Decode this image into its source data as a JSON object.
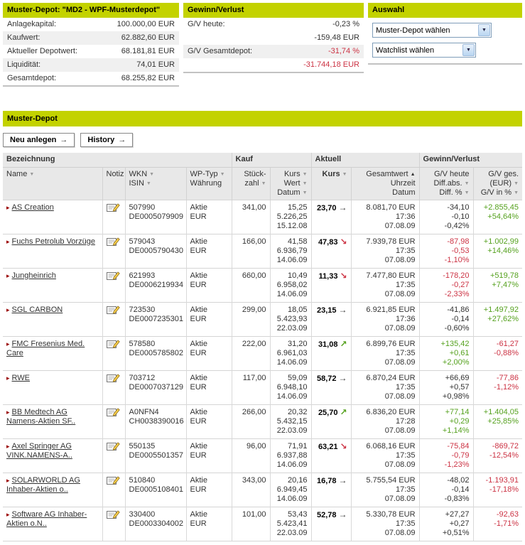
{
  "colors": {
    "accent": "#c3d200",
    "negative": "#cc3344",
    "positive": "#55a11e",
    "neutral": "#333333"
  },
  "panels": {
    "depot": {
      "title": "Muster-Depot: \"MD2 - WPF-Musterdepot\"",
      "rows": [
        {
          "label": "Anlagekapital:",
          "value": "100.000,00 EUR"
        },
        {
          "label": "Kaufwert:",
          "value": "62.882,60 EUR"
        },
        {
          "label": "Aktueller Depotwert:",
          "value": "68.181,81 EUR"
        },
        {
          "label": "Liquidität:",
          "value": "74,01 EUR"
        },
        {
          "label": "Gesamtdepot:",
          "value": "68.255,82 EUR"
        }
      ]
    },
    "gv": {
      "title": "Gewinn/Verlust",
      "lines": [
        {
          "label": "G/V heute:",
          "value": "-0,23 %",
          "negative": false
        },
        {
          "label": "",
          "value": "-159,48 EUR",
          "negative": false
        },
        {
          "label": "G/V Gesamtdepot:",
          "value": "-31,74 %",
          "negative": true
        },
        {
          "label": "",
          "value": "-31.744,18 EUR",
          "negative": true
        }
      ]
    },
    "auswahl": {
      "title": "Auswahl",
      "selects": [
        {
          "name": "musterdepot-select",
          "value": "Muster-Depot wählen"
        },
        {
          "name": "watchlist-select",
          "value": "Watchlist wählen"
        }
      ]
    }
  },
  "main": {
    "title": "Muster-Depot",
    "buttons": [
      {
        "name": "neu-anlegen-button",
        "label": "Neu anlegen"
      },
      {
        "name": "history-button",
        "label": "History"
      }
    ]
  },
  "table": {
    "groups": [
      {
        "label": "Bezeichnung",
        "span": 4
      },
      {
        "label": "Kauf",
        "span": 2
      },
      {
        "label": "Aktuell",
        "span": 2
      },
      {
        "label": "Gewinn/Verlust",
        "span": 2
      }
    ],
    "columns": [
      {
        "key": "name",
        "align": "left",
        "lines": [
          {
            "t": "Name",
            "sort": "down"
          }
        ]
      },
      {
        "key": "notiz",
        "align": "left",
        "lines": [
          {
            "t": "Notiz"
          }
        ]
      },
      {
        "key": "wkn-isin",
        "align": "left",
        "lines": [
          {
            "t": "WKN",
            "sort": "down"
          },
          {
            "t": "ISIN",
            "sort": "down"
          }
        ]
      },
      {
        "key": "wptyp",
        "align": "left",
        "lines": [
          {
            "t": "WP-Typ",
            "sort": "down"
          },
          {
            "t": "Währung"
          }
        ]
      },
      {
        "key": "stueckzahl",
        "align": "right",
        "lines": [
          {
            "t": "Stück-"
          },
          {
            "t": "zahl",
            "sort": "down"
          }
        ]
      },
      {
        "key": "kauf",
        "align": "right",
        "lines": [
          {
            "t": "Kurs",
            "sort": "down"
          },
          {
            "t": "Wert",
            "sort": "down"
          },
          {
            "t": "Datum",
            "sort": "down"
          }
        ]
      },
      {
        "key": "kurs",
        "align": "right",
        "lines": [
          {
            "t": "Kurs",
            "sort": "down",
            "bold": true
          }
        ]
      },
      {
        "key": "gesamtwert",
        "align": "right",
        "lines": [
          {
            "t": "Gesamtwert",
            "sort": "up-active"
          },
          {
            "t": "Uhrzeit"
          },
          {
            "t": "Datum"
          }
        ]
      },
      {
        "key": "gv-heute",
        "align": "right",
        "lines": [
          {
            "t": "G/V heute"
          },
          {
            "t": "Diff.abs.",
            "sort": "down"
          },
          {
            "t": "Diff. %",
            "sort": "down"
          }
        ]
      },
      {
        "key": "gv-ges",
        "align": "right",
        "lines": [
          {
            "t": "G/V ges."
          },
          {
            "t": "(EUR)",
            "sort": "down"
          },
          {
            "t": "G/V in %",
            "sort": "down"
          }
        ]
      }
    ],
    "rows": [
      {
        "name": "AS Creation",
        "wkn": "507990",
        "isin": "DE0005079909",
        "typ": "Aktie",
        "waehrung": "EUR",
        "stueckzahl": "341,00",
        "kauf_kurs": "15,25",
        "kauf_wert": "5.226,25",
        "kauf_datum": "15.12.08",
        "kurs": "23,70",
        "trend": "flat",
        "gesamtwert": "8.081,70 EUR",
        "uhrzeit": "17:36",
        "datum": "07.08.09",
        "gv_heute_abs": "-34,10",
        "gv_heute_diff": "-0,10",
        "gv_heute_pct": "-0,42%",
        "gv_ges_eur": "+2.855,45",
        "gv_ges_pct": "+54,64%"
      },
      {
        "name": "Fuchs Petrolub Vorzüge",
        "wkn": "579043",
        "isin": "DE0005790430",
        "typ": "Aktie",
        "waehrung": "EUR",
        "stueckzahl": "166,00",
        "kauf_kurs": "41,58",
        "kauf_wert": "6.936,79",
        "kauf_datum": "14.06.09",
        "kurs": "47,83",
        "trend": "down",
        "gesamtwert": "7.939,78 EUR",
        "uhrzeit": "17:35",
        "datum": "07.08.09",
        "gv_heute_abs": "-87,98",
        "gv_heute_diff": "-0,53",
        "gv_heute_pct": "-1,10%",
        "gv_ges_eur": "+1.002,99",
        "gv_ges_pct": "+14,46%"
      },
      {
        "name": "Jungheinrich",
        "wkn": "621993",
        "isin": "DE0006219934",
        "typ": "Aktie",
        "waehrung": "EUR",
        "stueckzahl": "660,00",
        "kauf_kurs": "10,49",
        "kauf_wert": "6.958,02",
        "kauf_datum": "14.06.09",
        "kurs": "11,33",
        "trend": "down",
        "gesamtwert": "7.477,80 EUR",
        "uhrzeit": "17:35",
        "datum": "07.08.09",
        "gv_heute_abs": "-178,20",
        "gv_heute_diff": "-0,27",
        "gv_heute_pct": "-2,33%",
        "gv_ges_eur": "+519,78",
        "gv_ges_pct": "+7,47%"
      },
      {
        "name": "SGL CARBON",
        "wkn": "723530",
        "isin": "DE0007235301",
        "typ": "Aktie",
        "waehrung": "EUR",
        "stueckzahl": "299,00",
        "kauf_kurs": "18,05",
        "kauf_wert": "5.423,93",
        "kauf_datum": "22.03.09",
        "kurs": "23,15",
        "trend": "flat",
        "gesamtwert": "6.921,85 EUR",
        "uhrzeit": "17:36",
        "datum": "07.08.09",
        "gv_heute_abs": "-41,86",
        "gv_heute_diff": "-0,14",
        "gv_heute_pct": "-0,60%",
        "gv_ges_eur": "+1.497,92",
        "gv_ges_pct": "+27,62%"
      },
      {
        "name": "FMC Fresenius Med. Care",
        "wkn": "578580",
        "isin": "DE0005785802",
        "typ": "Aktie",
        "waehrung": "EUR",
        "stueckzahl": "222,00",
        "kauf_kurs": "31,20",
        "kauf_wert": "6.961,03",
        "kauf_datum": "14.06.09",
        "kurs": "31,08",
        "trend": "up",
        "gesamtwert": "6.899,76 EUR",
        "uhrzeit": "17:35",
        "datum": "07.08.09",
        "gv_heute_abs": "+135,42",
        "gv_heute_diff": "+0,61",
        "gv_heute_pct": "+2,00%",
        "gv_ges_eur": "-61,27",
        "gv_ges_pct": "-0,88%"
      },
      {
        "name": "RWE",
        "wkn": "703712",
        "isin": "DE0007037129",
        "typ": "Aktie",
        "waehrung": "EUR",
        "stueckzahl": "117,00",
        "kauf_kurs": "59,09",
        "kauf_wert": "6.948,10",
        "kauf_datum": "14.06.09",
        "kurs": "58,72",
        "trend": "flat",
        "gesamtwert": "6.870,24 EUR",
        "uhrzeit": "17:35",
        "datum": "07.08.09",
        "gv_heute_abs": "+66,69",
        "gv_heute_diff": "+0,57",
        "gv_heute_pct": "+0,98%",
        "gv_ges_eur": "-77,86",
        "gv_ges_pct": "-1,12%"
      },
      {
        "name": "BB Medtech AG Namens-Aktien SF..",
        "wkn": "A0NFN4",
        "isin": "CH0038390016",
        "typ": "Aktie",
        "waehrung": "EUR",
        "stueckzahl": "266,00",
        "kauf_kurs": "20,32",
        "kauf_wert": "5.432,15",
        "kauf_datum": "22.03.09",
        "kurs": "25,70",
        "trend": "up",
        "gesamtwert": "6.836,20 EUR",
        "uhrzeit": "17:28",
        "datum": "07.08.09",
        "gv_heute_abs": "+77,14",
        "gv_heute_diff": "+0,29",
        "gv_heute_pct": "+1,14%",
        "gv_ges_eur": "+1.404,05",
        "gv_ges_pct": "+25,85%"
      },
      {
        "name": "Axel Springer AG VINK.NAMENS-A..",
        "wkn": "550135",
        "isin": "DE0005501357",
        "typ": "Aktie",
        "waehrung": "EUR",
        "stueckzahl": "96,00",
        "kauf_kurs": "71,91",
        "kauf_wert": "6.937,88",
        "kauf_datum": "14.06.09",
        "kurs": "63,21",
        "trend": "down",
        "gesamtwert": "6.068,16 EUR",
        "uhrzeit": "17:35",
        "datum": "07.08.09",
        "gv_heute_abs": "-75,84",
        "gv_heute_diff": "-0,79",
        "gv_heute_pct": "-1,23%",
        "gv_ges_eur": "-869,72",
        "gv_ges_pct": "-12,54%"
      },
      {
        "name": "SOLARWORLD AG Inhaber-Aktien o..",
        "wkn": "510840",
        "isin": "DE0005108401",
        "typ": "Aktie",
        "waehrung": "EUR",
        "stueckzahl": "343,00",
        "kauf_kurs": "20,16",
        "kauf_wert": "6.949,45",
        "kauf_datum": "14.06.09",
        "kurs": "16,78",
        "trend": "flat",
        "gesamtwert": "5.755,54 EUR",
        "uhrzeit": "17:35",
        "datum": "07.08.09",
        "gv_heute_abs": "-48,02",
        "gv_heute_diff": "-0,14",
        "gv_heute_pct": "-0,83%",
        "gv_ges_eur": "-1.193,91",
        "gv_ges_pct": "-17,18%"
      },
      {
        "name": "Software AG Inhaber-Aktien o.N..",
        "wkn": "330400",
        "isin": "DE0003304002",
        "typ": "Aktie",
        "waehrung": "EUR",
        "stueckzahl": "101,00",
        "kauf_kurs": "53,43",
        "kauf_wert": "5.423,41",
        "kauf_datum": "22.03.09",
        "kurs": "52,78",
        "trend": "flat",
        "gesamtwert": "5.330,78 EUR",
        "uhrzeit": "17:35",
        "datum": "07.08.09",
        "gv_heute_abs": "+27,27",
        "gv_heute_diff": "+0,27",
        "gv_heute_pct": "+0,51%",
        "gv_ges_eur": "-92,63",
        "gv_ges_pct": "-1,71%"
      }
    ]
  }
}
